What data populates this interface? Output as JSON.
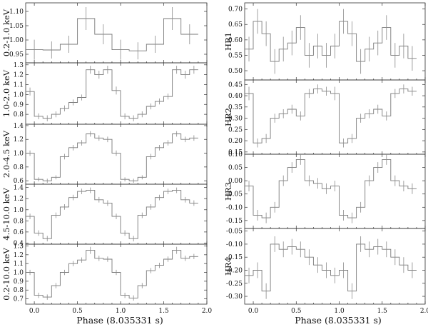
{
  "figure": {
    "left_xlabel": "Phase (8.035331 s)",
    "right_xlabel": "Phase (8.035331 s)"
  },
  "chart_data": [
    {
      "type": "line",
      "id": "p1",
      "column": "left",
      "ylabel": "0.2-1.0 keV",
      "xlim": [
        -0.1,
        2.0
      ],
      "ylim": [
        0.92,
        1.13
      ],
      "yticks": [
        0.95,
        1.0,
        1.05,
        1.1
      ],
      "ytick_labels": [
        "0.95",
        "1.00",
        "1.05",
        "1.10"
      ],
      "xticks": [
        0.0,
        0.5,
        1.0,
        1.5,
        2.0
      ],
      "xtick_labels": [],
      "bin_width": 0.2,
      "x": [
        0.0,
        0.2,
        0.4,
        0.6,
        0.8,
        1.0,
        1.2,
        1.4,
        1.6,
        1.8
      ],
      "y": [
        0.966,
        0.965,
        0.985,
        1.075,
        1.02,
        0.966,
        0.962,
        0.985,
        1.075,
        1.02
      ],
      "err": [
        0.035,
        0.03,
        0.03,
        0.04,
        0.035,
        0.035,
        0.03,
        0.03,
        0.04,
        0.035
      ]
    },
    {
      "type": "line",
      "id": "p2",
      "column": "left",
      "ylabel": "1.0-2.0 keV",
      "xlim": [
        -0.1,
        2.0
      ],
      "ylim": [
        0.7,
        1.32
      ],
      "yticks": [
        0.8,
        0.9,
        1.0,
        1.1,
        1.2,
        1.3
      ],
      "ytick_labels": [
        "0.8",
        "0.9",
        "1.0",
        "1.1",
        "1.2",
        "1.3"
      ],
      "xticks": [
        0.0,
        0.5,
        1.0,
        1.5,
        2.0
      ],
      "xtick_labels": [],
      "bin_width": 0.1,
      "x": [
        -0.05,
        0.05,
        0.15,
        0.25,
        0.35,
        0.45,
        0.55,
        0.65,
        0.75,
        0.85,
        0.95,
        1.05,
        1.15,
        1.25,
        1.35,
        1.45,
        1.55,
        1.65,
        1.75,
        1.85
      ],
      "y": [
        1.03,
        0.78,
        0.76,
        0.8,
        0.86,
        0.92,
        0.97,
        1.25,
        1.2,
        1.25,
        1.04,
        0.78,
        0.76,
        0.8,
        0.88,
        0.93,
        0.98,
        1.25,
        1.2,
        1.25
      ],
      "err": [
        0.04,
        0.03,
        0.03,
        0.03,
        0.03,
        0.03,
        0.03,
        0.04,
        0.04,
        0.04,
        0.04,
        0.03,
        0.03,
        0.03,
        0.03,
        0.03,
        0.03,
        0.04,
        0.04,
        0.04
      ]
    },
    {
      "type": "line",
      "id": "p3",
      "column": "left",
      "ylabel": "2.0-4.5 keV",
      "xlim": [
        -0.1,
        2.0
      ],
      "ylim": [
        0.55,
        1.42
      ],
      "yticks": [
        0.6,
        0.8,
        1.0,
        1.2,
        1.4
      ],
      "ytick_labels": [
        "0.6",
        "0.8",
        "1.0",
        "1.2",
        "1.4"
      ],
      "xticks": [
        0.0,
        0.5,
        1.0,
        1.5,
        2.0
      ],
      "xtick_labels": [],
      "bin_width": 0.1,
      "x": [
        -0.05,
        0.05,
        0.15,
        0.25,
        0.35,
        0.45,
        0.55,
        0.65,
        0.75,
        0.85,
        0.95,
        1.05,
        1.15,
        1.25,
        1.35,
        1.45,
        1.55,
        1.65,
        1.75,
        1.85
      ],
      "y": [
        1.0,
        0.62,
        0.6,
        0.65,
        0.95,
        1.08,
        1.15,
        1.28,
        1.22,
        1.2,
        1.0,
        0.62,
        0.6,
        0.65,
        0.95,
        1.08,
        1.15,
        1.28,
        1.2,
        1.22
      ],
      "err": [
        0.04,
        0.03,
        0.03,
        0.03,
        0.04,
        0.04,
        0.04,
        0.04,
        0.04,
        0.04,
        0.04,
        0.03,
        0.03,
        0.03,
        0.04,
        0.04,
        0.04,
        0.04,
        0.04,
        0.04
      ]
    },
    {
      "type": "line",
      "id": "p4",
      "column": "left",
      "ylabel": "4.5-10.0 keV",
      "xlim": [
        -0.1,
        2.0
      ],
      "ylim": [
        0.38,
        1.46
      ],
      "yticks": [
        0.4,
        0.6,
        0.8,
        1.0,
        1.2,
        1.4
      ],
      "ytick_labels": [
        "0.4",
        "0.6",
        "0.8",
        "1.0",
        "1.2",
        "1.4"
      ],
      "xticks": [
        0.0,
        0.5,
        1.0,
        1.5,
        2.0
      ],
      "xtick_labels": [],
      "bin_width": 0.1,
      "x": [
        -0.05,
        0.05,
        0.15,
        0.25,
        0.35,
        0.45,
        0.55,
        0.65,
        0.75,
        0.85,
        0.95,
        1.05,
        1.15,
        1.25,
        1.35,
        1.45,
        1.55,
        1.65,
        1.75,
        1.85
      ],
      "y": [
        0.88,
        0.58,
        0.48,
        0.9,
        1.05,
        1.22,
        1.33,
        1.35,
        1.18,
        1.12,
        0.88,
        0.58,
        0.48,
        0.9,
        1.05,
        1.22,
        1.33,
        1.35,
        1.18,
        1.12
      ],
      "err": [
        0.05,
        0.05,
        0.05,
        0.05,
        0.05,
        0.05,
        0.05,
        0.05,
        0.05,
        0.05,
        0.05,
        0.05,
        0.05,
        0.05,
        0.05,
        0.05,
        0.05,
        0.05,
        0.05,
        0.05
      ]
    },
    {
      "type": "line",
      "id": "p5",
      "column": "left",
      "ylabel": "0.2-10.0 keV",
      "xlim": [
        -0.1,
        2.0
      ],
      "ylim": [
        0.64,
        1.32
      ],
      "yticks": [
        0.7,
        0.8,
        0.9,
        1.0,
        1.1,
        1.2,
        1.3
      ],
      "ytick_labels": [
        "0.7",
        "0.8",
        "0.9",
        "1.0",
        "1.1",
        "1.2",
        "1.3"
      ],
      "xticks": [
        0.0,
        0.5,
        1.0,
        1.5,
        2.0
      ],
      "xtick_labels": [
        "0.0",
        "0.5",
        "1.0",
        "1.5",
        "2.0"
      ],
      "bin_width": 0.1,
      "x": [
        -0.05,
        0.05,
        0.15,
        0.25,
        0.35,
        0.45,
        0.55,
        0.65,
        0.75,
        0.85,
        0.95,
        1.05,
        1.15,
        1.25,
        1.35,
        1.45,
        1.55,
        1.65,
        1.75,
        1.85
      ],
      "y": [
        1.0,
        0.74,
        0.72,
        0.85,
        1.0,
        1.1,
        1.14,
        1.25,
        1.16,
        1.15,
        1.0,
        0.74,
        0.71,
        0.85,
        1.02,
        1.08,
        1.15,
        1.25,
        1.16,
        1.18
      ],
      "err": [
        0.03,
        0.03,
        0.03,
        0.03,
        0.03,
        0.03,
        0.03,
        0.04,
        0.03,
        0.03,
        0.03,
        0.03,
        0.03,
        0.03,
        0.03,
        0.03,
        0.03,
        0.04,
        0.03,
        0.03
      ]
    },
    {
      "type": "line",
      "id": "h1",
      "column": "right",
      "ylabel": "HR1",
      "xlim": [
        -0.1,
        2.0
      ],
      "ylim": [
        0.47,
        0.72
      ],
      "yticks": [
        0.5,
        0.55,
        0.6,
        0.65,
        0.7
      ],
      "ytick_labels": [
        "0.50",
        "0.55",
        "0.60",
        "0.65",
        "0.70"
      ],
      "xticks": [
        0.0,
        0.5,
        1.0,
        1.5,
        2.0
      ],
      "xtick_labels": [],
      "bin_width": 0.1,
      "x": [
        -0.05,
        0.05,
        0.15,
        0.25,
        0.35,
        0.45,
        0.55,
        0.65,
        0.75,
        0.85,
        0.95,
        1.05,
        1.15,
        1.25,
        1.35,
        1.45,
        1.55,
        1.65,
        1.75,
        1.85
      ],
      "y": [
        0.57,
        0.66,
        0.62,
        0.53,
        0.57,
        0.59,
        0.64,
        0.55,
        0.58,
        0.55,
        0.58,
        0.66,
        0.62,
        0.53,
        0.57,
        0.59,
        0.64,
        0.55,
        0.58,
        0.54
      ],
      "err": [
        0.04,
        0.04,
        0.04,
        0.04,
        0.04,
        0.04,
        0.04,
        0.04,
        0.04,
        0.04,
        0.04,
        0.04,
        0.04,
        0.04,
        0.04,
        0.04,
        0.04,
        0.04,
        0.04,
        0.04
      ]
    },
    {
      "type": "line",
      "id": "h2",
      "column": "right",
      "ylabel": "HR2",
      "xlim": [
        -0.1,
        2.0
      ],
      "ylim": [
        0.14,
        0.47
      ],
      "yticks": [
        0.15,
        0.2,
        0.25,
        0.3,
        0.35,
        0.4,
        0.45
      ],
      "ytick_labels": [
        "0.15",
        "0.20",
        "0.25",
        "0.30",
        "0.35",
        "0.40",
        "0.45"
      ],
      "xticks": [
        0.0,
        0.5,
        1.0,
        1.5,
        2.0
      ],
      "xtick_labels": [],
      "bin_width": 0.1,
      "x": [
        -0.05,
        0.05,
        0.15,
        0.25,
        0.35,
        0.45,
        0.55,
        0.65,
        0.75,
        0.85,
        0.95,
        1.05,
        1.15,
        1.25,
        1.35,
        1.45,
        1.55,
        1.65,
        1.75,
        1.85
      ],
      "y": [
        0.41,
        0.19,
        0.21,
        0.3,
        0.32,
        0.34,
        0.31,
        0.41,
        0.43,
        0.42,
        0.41,
        0.19,
        0.21,
        0.3,
        0.32,
        0.34,
        0.31,
        0.41,
        0.43,
        0.42
      ],
      "err": [
        0.03,
        0.02,
        0.02,
        0.02,
        0.02,
        0.02,
        0.02,
        0.02,
        0.02,
        0.02,
        0.03,
        0.02,
        0.02,
        0.02,
        0.02,
        0.02,
        0.02,
        0.02,
        0.02,
        0.02
      ]
    },
    {
      "type": "line",
      "id": "h3",
      "column": "right",
      "ylabel": "HR3",
      "xlim": [
        -0.1,
        2.0
      ],
      "ylim": [
        -0.18,
        0.1
      ],
      "yticks": [
        -0.15,
        -0.1,
        -0.05,
        0.0,
        0.05,
        0.1
      ],
      "ytick_labels": [
        "-0.15",
        "-0.10",
        "-0.05",
        "0.00",
        "0.05",
        "0.10"
      ],
      "xticks": [
        0.0,
        0.5,
        1.0,
        1.5,
        2.0
      ],
      "xtick_labels": [],
      "bin_width": 0.1,
      "x": [
        -0.05,
        0.05,
        0.15,
        0.25,
        0.35,
        0.45,
        0.55,
        0.65,
        0.75,
        0.85,
        0.95,
        1.05,
        1.15,
        1.25,
        1.35,
        1.45,
        1.55,
        1.65,
        1.75,
        1.85
      ],
      "y": [
        -0.02,
        -0.13,
        -0.14,
        -0.1,
        0.0,
        0.05,
        0.08,
        0.0,
        -0.01,
        -0.03,
        -0.02,
        -0.13,
        -0.14,
        -0.1,
        0.0,
        0.05,
        0.08,
        0.0,
        -0.02,
        -0.03
      ],
      "err": [
        0.02,
        0.02,
        0.02,
        0.02,
        0.02,
        0.02,
        0.02,
        0.02,
        0.02,
        0.02,
        0.02,
        0.02,
        0.02,
        0.02,
        0.02,
        0.02,
        0.02,
        0.02,
        0.02,
        0.02
      ]
    },
    {
      "type": "line",
      "id": "h4",
      "column": "right",
      "ylabel": "HR4",
      "xlim": [
        -0.1,
        2.0
      ],
      "ylim": [
        -0.33,
        -0.04
      ],
      "yticks": [
        -0.3,
        -0.25,
        -0.2,
        -0.15,
        -0.1,
        -0.05
      ],
      "ytick_labels": [
        "-0.30",
        "-0.25",
        "-0.20",
        "-0.15",
        "-0.10",
        "-0.05"
      ],
      "xticks": [
        0.0,
        0.5,
        1.0,
        1.5,
        2.0
      ],
      "xtick_labels": [
        "0.0",
        "0.5",
        "1.0",
        "1.5",
        "2.0"
      ],
      "bin_width": 0.1,
      "x": [
        -0.05,
        0.05,
        0.15,
        0.25,
        0.35,
        0.45,
        0.55,
        0.65,
        0.75,
        0.85,
        0.95,
        1.05,
        1.15,
        1.25,
        1.35,
        1.45,
        1.55,
        1.65,
        1.75,
        1.85
      ],
      "y": [
        -0.22,
        -0.2,
        -0.28,
        -0.1,
        -0.12,
        -0.11,
        -0.12,
        -0.15,
        -0.18,
        -0.2,
        -0.22,
        -0.2,
        -0.28,
        -0.1,
        -0.12,
        -0.11,
        -0.12,
        -0.15,
        -0.18,
        -0.2
      ],
      "err": [
        0.03,
        0.03,
        0.03,
        0.03,
        0.03,
        0.03,
        0.03,
        0.03,
        0.03,
        0.03,
        0.03,
        0.03,
        0.03,
        0.03,
        0.03,
        0.03,
        0.03,
        0.03,
        0.03,
        0.03
      ]
    }
  ]
}
